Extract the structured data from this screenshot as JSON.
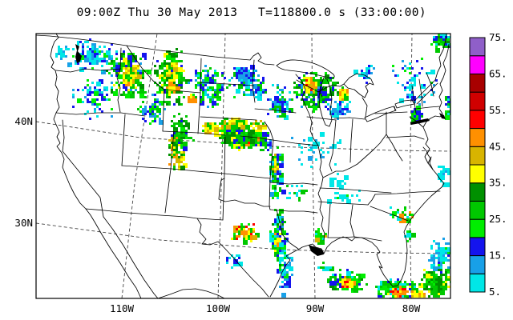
{
  "header": {
    "datetime": "09:00Z Thu 30 May 2013",
    "timer": "T=118800.0 s (33:00:00)"
  },
  "axes": {
    "y_ticks": [
      "40N",
      "30N"
    ],
    "x_ticks": [
      "110W",
      "100W",
      "90W",
      "80W"
    ]
  },
  "colorbar": {
    "labels_top_down": [
      "75.",
      "65.",
      "55.",
      "45.",
      "35.",
      "25.",
      "15.",
      "5."
    ],
    "cells_bottom_up": [
      {
        "dbz": 5,
        "color": "#00E7E7"
      },
      {
        "dbz": 10,
        "color": "#18A0E8"
      },
      {
        "dbz": 15,
        "color": "#1414EE"
      },
      {
        "dbz": 20,
        "color": "#00EE00"
      },
      {
        "dbz": 25,
        "color": "#00C800"
      },
      {
        "dbz": 30,
        "color": "#009000"
      },
      {
        "dbz": 35,
        "color": "#FFFF00"
      },
      {
        "dbz": 40,
        "color": "#D8B400"
      },
      {
        "dbz": 45,
        "color": "#FF9000"
      },
      {
        "dbz": 50,
        "color": "#FF0000"
      },
      {
        "dbz": 55,
        "color": "#D00000"
      },
      {
        "dbz": 60,
        "color": "#A80000"
      },
      {
        "dbz": 65,
        "color": "#FF00FF"
      },
      {
        "dbz": 70,
        "color": "#8F5FC9"
      }
    ]
  },
  "radar": {
    "palette": {
      "c": "#00E7E7",
      "s": "#18A0E8",
      "b": "#1414EE",
      "G": "#00EE00",
      "g": "#00C800",
      "d": "#009000",
      "y": "#FFFF00",
      "o": "#D8B400",
      "O": "#FF9000",
      "R": "#FF0000"
    },
    "clusters": [
      [
        112,
        68,
        40,
        22,
        120,
        "c:3,s:3,b:2,G:1"
      ],
      [
        75,
        64,
        10,
        9,
        20,
        "c:2,s:1"
      ],
      [
        120,
        120,
        32,
        28,
        70,
        "c:3,s:2,b:2,G:1"
      ],
      [
        160,
        92,
        28,
        34,
        190,
        "G:2,g:3,d:2,b:2,s:1,y:1"
      ],
      [
        163,
        96,
        12,
        18,
        60,
        "y:3,o:2,g:1,O:1"
      ],
      [
        212,
        96,
        22,
        40,
        210,
        "g:3,d:3,G:2,b:1,y:1"
      ],
      [
        214,
        86,
        10,
        12,
        50,
        "y:3,o:1,g:1"
      ],
      [
        213,
        108,
        7,
        10,
        26,
        "O:2,y:2,o:1"
      ],
      [
        188,
        136,
        18,
        20,
        80,
        "g:2,b:2,s:2,G:1"
      ],
      [
        220,
        186,
        12,
        28,
        100,
        "y:2,o:2,g:2,O:1,d:1"
      ],
      [
        225,
        162,
        16,
        26,
        90,
        "g:3,d:2,b:1,G:1"
      ],
      [
        258,
        108,
        26,
        30,
        130,
        "g:2,G:2,b:2,s:2,c:1"
      ],
      [
        238,
        122,
        5,
        6,
        14,
        "O:2,y:1"
      ],
      [
        308,
        102,
        26,
        22,
        110,
        "c:3,s:2,b:2,G:2,g:1"
      ],
      [
        300,
        91,
        10,
        8,
        35,
        "b:3,s:2"
      ],
      [
        348,
        128,
        18,
        26,
        80,
        "b:2,s:2,c:2,g:2"
      ],
      [
        392,
        112,
        30,
        28,
        240,
        "g:3,d:2,G:2,b:2,s:1"
      ],
      [
        385,
        104,
        11,
        12,
        55,
        "y:3,O:2,R:1,o:1"
      ],
      [
        427,
        116,
        7,
        8,
        30,
        "y:2,O:1,g:1"
      ],
      [
        420,
        135,
        18,
        14,
        45,
        "c:2,s:2,b:1"
      ],
      [
        292,
        165,
        15,
        10,
        60,
        "o:3,y:3,O:2,g:1"
      ],
      [
        308,
        174,
        15,
        9,
        60,
        "o:3,y:2,O:3,g:1"
      ],
      [
        306,
        174,
        7,
        4,
        18,
        "R:2,O:1"
      ],
      [
        300,
        170,
        27,
        15,
        130,
        "y:2,o:1,g:2,G:1"
      ],
      [
        298,
        167,
        33,
        21,
        130,
        "g:3,G:2,d:2,b:1"
      ],
      [
        290,
        151,
        19,
        8,
        55,
        "y:2,o:2,g:2"
      ],
      [
        263,
        158,
        15,
        8,
        50,
        "y:2,O:1,o:2,g:1"
      ],
      [
        322,
        156,
        11,
        6,
        28,
        "y:2,o:1,g:1"
      ],
      [
        330,
        177,
        8,
        14,
        40,
        "b:2,s:2,g:1"
      ],
      [
        343,
        215,
        10,
        36,
        100,
        "g:2,b:2,G:2,s:1,d:1,c:1"
      ],
      [
        342,
        204,
        5,
        14,
        16,
        "y:2,o:1"
      ],
      [
        347,
        296,
        12,
        42,
        120,
        "g:2,b:2,c:2,G:2,s:1,d:1"
      ],
      [
        344,
        300,
        5,
        20,
        16,
        "y:2,O:1"
      ],
      [
        303,
        289,
        17,
        13,
        75,
        "O:2,y:2,g:2,o:1,G:1,R:1"
      ],
      [
        355,
        342,
        10,
        28,
        55,
        "c:2,s:2,b:1,G:1"
      ],
      [
        290,
        325,
        12,
        10,
        20,
        "c:2,b:1"
      ],
      [
        398,
        296,
        10,
        10,
        30,
        "g:2,o:1,G:1,c:1"
      ],
      [
        405,
        332,
        10,
        8,
        16,
        "c:1,g:1"
      ],
      [
        433,
        350,
        25,
        15,
        140,
        "g:3,G:2,d:1,b:1,c:1"
      ],
      [
        432,
        352,
        10,
        7,
        35,
        "y:2,O:2,R:1"
      ],
      [
        494,
        360,
        28,
        13,
        160,
        "g:3,G:2,y:1,b:1,c:1"
      ],
      [
        497,
        363,
        12,
        6,
        40,
        "O:2,R:2,y:1"
      ],
      [
        543,
        352,
        23,
        20,
        200,
        "d:3,g:3,G:2,y:1"
      ],
      [
        520,
        366,
        10,
        5,
        22,
        "O:1,y:2,o:1"
      ],
      [
        548,
        318,
        14,
        24,
        100,
        "c:3,s:3,b:1,G:1"
      ],
      [
        500,
        266,
        18,
        12,
        35,
        "c:1,G:1,g:1,O:1"
      ],
      [
        430,
        245,
        25,
        12,
        20,
        "c:2,G:1"
      ],
      [
        390,
        185,
        42,
        26,
        40,
        "c:3,s:1"
      ],
      [
        550,
        50,
        16,
        11,
        80,
        "g:2,G:2,b:2,d:1,c:1"
      ],
      [
        515,
        105,
        35,
        40,
        70,
        "c:3,s:2,b:1,G:1"
      ],
      [
        520,
        143,
        10,
        7,
        35,
        "G:2,g:2,b:1"
      ],
      [
        560,
        132,
        7,
        20,
        45,
        "b:2,g:2,G:1,c:1"
      ],
      [
        455,
        92,
        18,
        14,
        30,
        "c:2,b:1,s:1"
      ],
      [
        368,
        240,
        15,
        12,
        18,
        "c:2,g:1"
      ],
      [
        420,
        225,
        15,
        10,
        14,
        "c:2"
      ],
      [
        553,
        215,
        8,
        15,
        22,
        "c:2,s:1"
      ],
      [
        510,
        290,
        8,
        10,
        16,
        "G:1,c:1,g:1"
      ]
    ]
  }
}
